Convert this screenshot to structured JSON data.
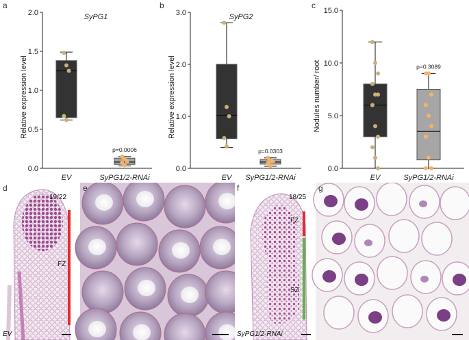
{
  "panel_letters": [
    "a",
    "b",
    "c",
    "d",
    "e",
    "f",
    "g"
  ],
  "chart_data": [
    {
      "type": "box",
      "panel": "a",
      "title": "SyPG1",
      "ylabel": "Relative expression level",
      "ylim": [
        0,
        2.0
      ],
      "yticks": [
        "0.0",
        "0.5",
        "1.0",
        "1.5",
        "2.0"
      ],
      "categories": [
        "EV",
        "SyPG1/2-RNAi"
      ],
      "boxes": [
        {
          "name": "EV",
          "min": 0.62,
          "q1": 0.65,
          "median": 1.25,
          "q3": 1.38,
          "max": 1.49,
          "points": [
            1.48,
            1.32,
            1.25,
            0.67,
            0.62
          ],
          "color": "#333333"
        },
        {
          "name": "SyPG1/2-RNAi",
          "min": 0.03,
          "q1": 0.05,
          "median": 0.08,
          "q3": 0.13,
          "max": 0.15,
          "points": [
            0.15,
            0.12,
            0.09,
            0.07,
            0.04
          ],
          "color": "#a6a6a6"
        }
      ],
      "annotation": "p=0.0006"
    },
    {
      "type": "box",
      "panel": "b",
      "title": "SyPG2",
      "ylabel": "Relative expression level",
      "ylim": [
        0,
        3.0
      ],
      "yticks": [
        "0.0",
        "1.0",
        "2.0",
        "3.0"
      ],
      "categories": [
        "EV",
        "SyPG1/2-RNAi"
      ],
      "boxes": [
        {
          "name": "EV",
          "min": 0.4,
          "q1": 0.57,
          "median": 1.02,
          "q3": 2.0,
          "max": 2.8,
          "points": [
            2.8,
            1.18,
            1.0,
            0.58,
            0.42
          ],
          "color": "#333333"
        },
        {
          "name": "SyPG1/2-RNAi",
          "min": 0.04,
          "q1": 0.08,
          "median": 0.12,
          "q3": 0.17,
          "max": 0.2,
          "points": [
            0.2,
            0.15,
            0.13,
            0.1,
            0.05
          ],
          "color": "#a6a6a6"
        }
      ],
      "annotation": "p=0.0303"
    },
    {
      "type": "box",
      "panel": "c",
      "title": "",
      "ylabel": "Nodules number/ root",
      "ylim": [
        0,
        15.0
      ],
      "yticks": [
        "0.0",
        "5.0",
        "10.0",
        "15.0"
      ],
      "categories": [
        "EV",
        "SyPG1/2-RNAi"
      ],
      "boxes": [
        {
          "name": "EV",
          "min": 0,
          "q1": 3,
          "median": 6,
          "q3": 8,
          "max": 12,
          "points": [
            12,
            10,
            9,
            8,
            7,
            7,
            6,
            4,
            3,
            2,
            1,
            0
          ],
          "color": "#333333"
        },
        {
          "name": "SyPG1/2-RNAi",
          "min": 0,
          "q1": 0.8,
          "median": 3.5,
          "q3": 7.5,
          "max": 9,
          "points": [
            9,
            9,
            7,
            6,
            5,
            4,
            3,
            1,
            0,
            0
          ],
          "color": "#a6a6a6"
        }
      ],
      "annotation": "p=0.3089"
    }
  ],
  "micrographs": {
    "d": {
      "ratio": "19/22",
      "zone": "FZ",
      "genotype": "EV"
    },
    "f": {
      "ratio": "18/25",
      "zone1": "FZ",
      "zone2": "SZ",
      "genotype": "SyPG1/2-RNAi"
    }
  },
  "colors": {
    "ev_box": "#333333",
    "rnai_box": "#a6a6a6",
    "ev_point": "#c8b07a",
    "rnai_point": "#f5b36a",
    "bar_red": "#e52b2b",
    "bar_green": "#5cb646"
  }
}
